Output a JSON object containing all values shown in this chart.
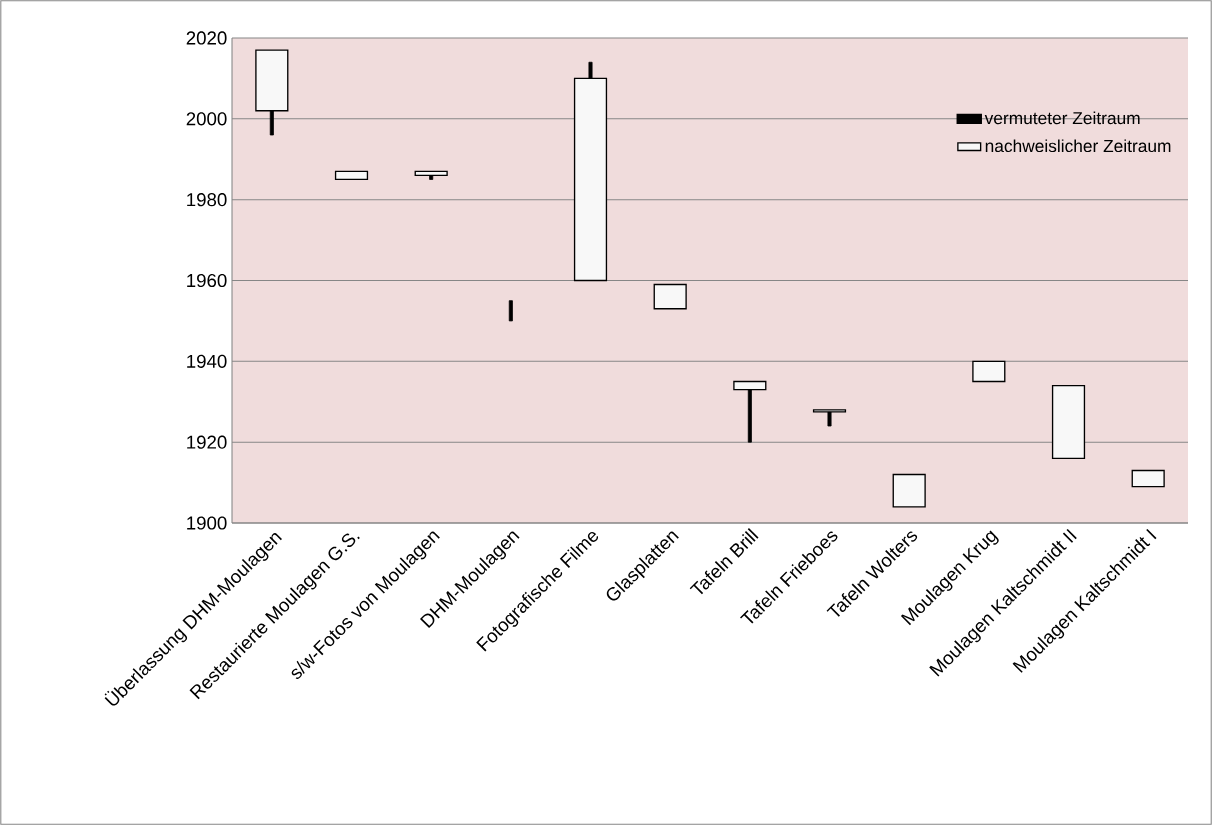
{
  "chart_data": {
    "type": "bar",
    "categories": [
      "Überlassung DHM-Moulagen",
      "Restaurierte Moulagen G.S.",
      "s/w-Fotos von Moulagen",
      "DHM-Moulagen",
      "Fotografische Filme",
      "Glasplatten",
      "Tafeln Brill",
      "Tafeln Frieboes",
      "Tafeln Wolters",
      "Moulagen Krug",
      "Moulagen Kaltschmidt II",
      "Moulagen Kaltschmidt I"
    ],
    "series": [
      {
        "name": "vermuteter Zeitraum",
        "color": "#000000",
        "base": [
          1996,
          null,
          1985,
          1950,
          2010,
          null,
          1920,
          1924,
          null,
          null,
          null,
          null
        ],
        "values": [
          6,
          null,
          1,
          5,
          4,
          null,
          13,
          3.5,
          null,
          null,
          null,
          null
        ]
      },
      {
        "name": "nachweislicher Zeitraum",
        "color": "#f8f8f8",
        "base": [
          2002,
          1985,
          1986,
          null,
          1960,
          1953,
          1933,
          1927.5,
          1904,
          1935,
          1916,
          1909
        ],
        "values": [
          15,
          2,
          1,
          null,
          50,
          6,
          2,
          0.5,
          8,
          5,
          18,
          4
        ]
      }
    ],
    "ylim": [
      1900,
      2020
    ],
    "yticks": [
      1900,
      1920,
      1940,
      1960,
      1980,
      2000,
      2020
    ],
    "grid": "y",
    "legend": "top right"
  }
}
